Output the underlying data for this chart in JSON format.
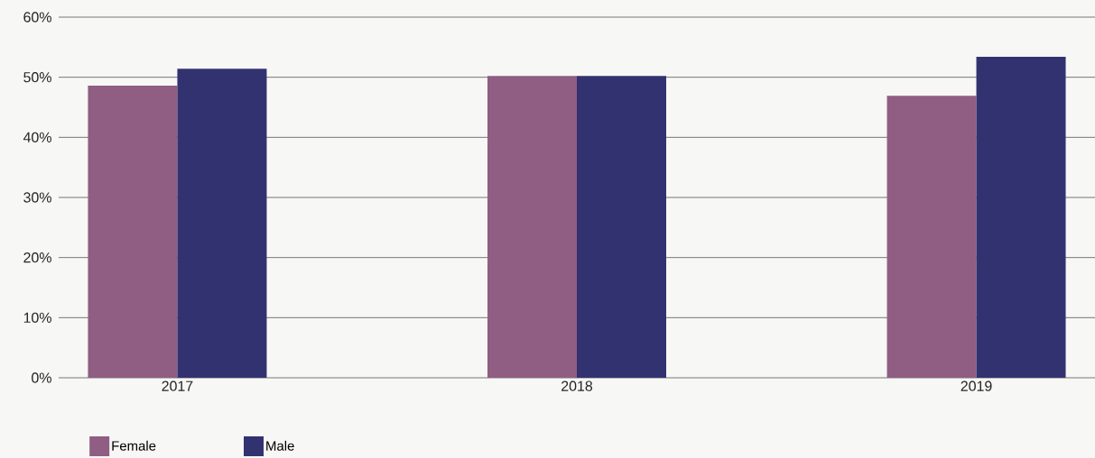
{
  "chart_data": {
    "type": "bar",
    "categories": [
      "2017",
      "2018",
      "2019"
    ],
    "series": [
      {
        "name": "Female",
        "color": "#8f5e82",
        "values": [
          48.6,
          50.2,
          46.9
        ]
      },
      {
        "name": "Male",
        "color": "#333270",
        "values": [
          51.4,
          50.2,
          53.4
        ]
      }
    ],
    "ylim": [
      0,
      60
    ],
    "yticks": [
      {
        "value": 0,
        "label": "0%"
      },
      {
        "value": 10,
        "label": "10%"
      },
      {
        "value": 20,
        "label": "20%"
      },
      {
        "value": 30,
        "label": "30%"
      },
      {
        "value": 40,
        "label": "40%"
      },
      {
        "value": 50,
        "label": "50%"
      },
      {
        "value": 60,
        "label": "60%"
      }
    ],
    "grid": "y",
    "legend": "bottom left"
  }
}
